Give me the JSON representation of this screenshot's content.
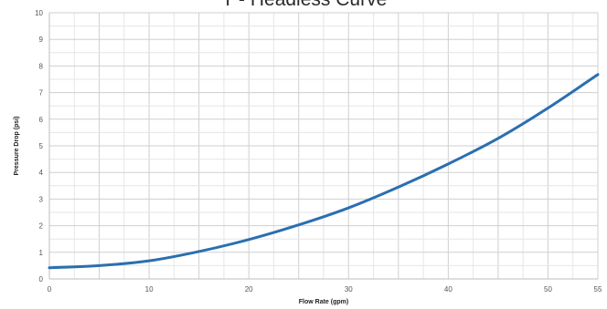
{
  "chart_data": {
    "type": "line",
    "title": "T - Headless Curve",
    "xlabel": "Flow Rate (gpm)",
    "ylabel": "Pressure Drop (psi)",
    "xlim": [
      0,
      55
    ],
    "ylim": [
      0,
      10
    ],
    "x_ticks": [
      0,
      10,
      20,
      30,
      40,
      50,
      55
    ],
    "y_ticks": [
      0,
      1,
      2,
      3,
      4,
      5,
      6,
      7,
      8,
      9,
      10
    ],
    "grid": true,
    "legend": "none",
    "series": [
      {
        "color": "#2a6fb0",
        "x": [
          0,
          5,
          10,
          15,
          20,
          25,
          30,
          35,
          40,
          45,
          50,
          55
        ],
        "y": [
          0.42,
          0.5,
          0.68,
          1.03,
          1.48,
          2.03,
          2.67,
          3.45,
          4.32,
          5.28,
          6.42,
          7.68
        ]
      }
    ]
  }
}
